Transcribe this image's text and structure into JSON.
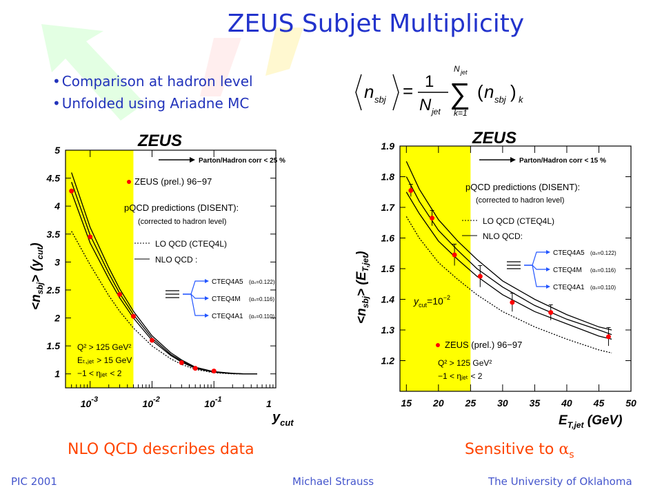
{
  "slide": {
    "title": "ZEUS Subjet Multiplicity",
    "bullets": [
      "Comparison at hadron level",
      "Unfolded using Ariadne MC"
    ],
    "formula": {
      "lhs": "n",
      "lhs_sub": "sbj",
      "num": "1",
      "den": "N",
      "den_sub": "jet",
      "sum_top": "N",
      "sum_top_sub": "jet",
      "sum_bottom": "k=1",
      "sum_symbol": "∑",
      "term": "n",
      "term_sub": "sbj",
      "term_k": "k",
      "eq": "="
    },
    "captions": {
      "left": "NLO QCD describes data",
      "right_prefix": "Sensitive to ",
      "right_symbol": "α",
      "right_sub": "s"
    },
    "footer": {
      "left": "PIC 2001",
      "center": "Michael Strauss",
      "right": "The University of Oklahoma"
    },
    "colors": {
      "title": "#2233cc",
      "caption": "#ff4400",
      "footer": "#4455cc",
      "band": "#ffff00",
      "data_point": "#ff0000",
      "arrow": "#2255ff"
    }
  },
  "chart_data": [
    {
      "type": "line",
      "title": "ZEUS",
      "xlabel": "y",
      "xlabel_sub": "cut",
      "ylabel": "<n",
      "ylabel_sub": "sbj",
      "ylabel_suffix": "> (y",
      "ylabel_suffix_sub": "cut",
      "ylabel_end": ")",
      "x_scale": "log",
      "xlim": [
        0.0004,
        1
      ],
      "ylim": [
        0.75,
        5
      ],
      "x_ticks": [
        {
          "v": 0.001,
          "base": "10",
          "exp": "-3"
        },
        {
          "v": 0.01,
          "base": "10",
          "exp": "-2"
        },
        {
          "v": 0.1,
          "base": "10",
          "exp": "-1"
        },
        {
          "v": 1,
          "base": "1",
          "exp": ""
        }
      ],
      "y_ticks": [
        {
          "v": 1,
          "label": "1"
        },
        {
          "v": 1.5,
          "label": "1.5"
        },
        {
          "v": 2,
          "label": "2"
        },
        {
          "v": 2.5,
          "label": "2.5"
        },
        {
          "v": 3,
          "label": "3"
        },
        {
          "v": 3.5,
          "label": "3.5"
        },
        {
          "v": 4,
          "label": "4"
        },
        {
          "v": 4.5,
          "label": "4.5"
        },
        {
          "v": 5,
          "label": "5"
        }
      ],
      "band_x": [
        0.0004,
        0.005
      ],
      "data": {
        "name": "ZEUS (prel.) 96−97",
        "x": [
          0.0005,
          0.001,
          0.003,
          0.005,
          0.01,
          0.03,
          0.05,
          0.1
        ],
        "y": [
          4.27,
          3.45,
          2.42,
          2.03,
          1.6,
          1.2,
          1.1,
          1.05
        ]
      },
      "series": [
        {
          "name": "CTEQ4A5",
          "style": "solid",
          "x": [
            0.0005,
            0.001,
            0.002,
            0.003,
            0.005,
            0.01,
            0.02,
            0.03,
            0.05,
            0.1,
            0.2,
            0.3,
            0.5
          ],
          "y": [
            4.6,
            3.62,
            2.9,
            2.52,
            2.12,
            1.68,
            1.38,
            1.25,
            1.12,
            1.04,
            1.01,
            1.0,
            1.0
          ]
        },
        {
          "name": "CTEQ4M",
          "style": "solid",
          "x": [
            0.0005,
            0.001,
            0.002,
            0.003,
            0.005,
            0.01,
            0.02,
            0.03,
            0.05,
            0.1,
            0.2,
            0.3,
            0.5
          ],
          "y": [
            4.43,
            3.48,
            2.8,
            2.44,
            2.06,
            1.64,
            1.35,
            1.23,
            1.11,
            1.035,
            1.01,
            1.0,
            1.0
          ]
        },
        {
          "name": "CTEQ4A1",
          "style": "solid",
          "x": [
            0.0005,
            0.001,
            0.002,
            0.003,
            0.005,
            0.01,
            0.02,
            0.03,
            0.05,
            0.1,
            0.2,
            0.3,
            0.5
          ],
          "y": [
            4.25,
            3.34,
            2.7,
            2.36,
            2.0,
            1.6,
            1.33,
            1.21,
            1.1,
            1.03,
            1.005,
            1.0,
            1.0
          ]
        },
        {
          "name": "LO QCD (CTEQ4L)",
          "style": "dotted",
          "x": [
            0.0005,
            0.001,
            0.002,
            0.003,
            0.005,
            0.01,
            0.02,
            0.03,
            0.05,
            0.1,
            0.2,
            0.3,
            0.5
          ],
          "y": [
            3.55,
            2.95,
            2.4,
            2.12,
            1.82,
            1.5,
            1.27,
            1.17,
            1.08,
            1.02,
            1.0,
            1.0,
            1.0
          ]
        }
      ],
      "annotations": {
        "parton_hadron": "Parton/Hadron corr < 25 %",
        "data_legend": "ZEUS (prel.) 96−97",
        "pqcd": "pQCD predictions (DISENT):",
        "corrected": "(corrected to hadron level)",
        "lo_legend": "LO QCD (CTEQ4L)",
        "nlo_legend": "NLO QCD :",
        "pdf_labels": [
          "CTEQ4A5",
          "CTEQ4M",
          "CTEQ4A1"
        ],
        "alpha_values": [
          "(αₛ=0.122)",
          "(αₛ=0.116)",
          "(αₛ=0.110)"
        ],
        "cuts": [
          "Q² > 125 GeV²",
          "Eₜ,ⱼₑₜ > 15 GeV",
          "−1 < ηⱼₑₜ < 2"
        ]
      }
    },
    {
      "type": "line",
      "title": "ZEUS",
      "xlabel": "E",
      "xlabel_sub": "T,jet",
      "xlabel_suffix": " (GeV)",
      "ylabel": "<n",
      "ylabel_sub": "sbj",
      "ylabel_suffix": "> (E",
      "ylabel_suffix_sub": "T,jet",
      "ylabel_end": ")",
      "x_scale": "linear",
      "xlim": [
        14,
        50
      ],
      "ylim": [
        1.1,
        1.9
      ],
      "x_ticks": [
        {
          "v": 15,
          "label": "15"
        },
        {
          "v": 20,
          "label": "20"
        },
        {
          "v": 25,
          "label": "25"
        },
        {
          "v": 30,
          "label": "30"
        },
        {
          "v": 35,
          "label": "35"
        },
        {
          "v": 40,
          "label": "40"
        },
        {
          "v": 45,
          "label": "45"
        },
        {
          "v": 50,
          "label": "50"
        }
      ],
      "y_ticks": [
        {
          "v": 1.2,
          "label": "1.2"
        },
        {
          "v": 1.3,
          "label": "1.3"
        },
        {
          "v": 1.4,
          "label": "1.4"
        },
        {
          "v": 1.5,
          "label": "1.5"
        },
        {
          "v": 1.6,
          "label": "1.6"
        },
        {
          "v": 1.7,
          "label": "1.7"
        },
        {
          "v": 1.8,
          "label": "1.8"
        },
        {
          "v": 1.9,
          "label": "1.9"
        }
      ],
      "band_x": [
        14,
        25
      ],
      "data": {
        "name": "ZEUS (prel.) 96−97",
        "x": [
          15.7,
          19,
          22.5,
          26.5,
          31.5,
          37.5,
          46.5
        ],
        "y": [
          1.755,
          1.665,
          1.545,
          1.475,
          1.39,
          1.357,
          1.278
        ],
        "yerr": [
          0.02,
          0.025,
          0.035,
          0.035,
          0.03,
          0.025,
          0.03
        ]
      },
      "series": [
        {
          "name": "CTEQ4A5",
          "style": "solid",
          "x": [
            15,
            17,
            20,
            23,
            26,
            30,
            35,
            40,
            45,
            47
          ],
          "y": [
            1.85,
            1.76,
            1.66,
            1.59,
            1.53,
            1.46,
            1.4,
            1.35,
            1.31,
            1.3
          ]
        },
        {
          "name": "CTEQ4M",
          "style": "solid",
          "x": [
            15,
            17,
            20,
            23,
            26,
            30,
            35,
            40,
            45,
            47
          ],
          "y": [
            1.8,
            1.72,
            1.625,
            1.56,
            1.5,
            1.44,
            1.38,
            1.335,
            1.3,
            1.285
          ]
        },
        {
          "name": "CTEQ4A1",
          "style": "solid",
          "x": [
            15,
            17,
            20,
            23,
            26,
            30,
            35,
            40,
            45,
            47
          ],
          "y": [
            1.75,
            1.68,
            1.59,
            1.53,
            1.475,
            1.415,
            1.36,
            1.32,
            1.28,
            1.27
          ]
        },
        {
          "name": "LO QCD (CTEQ4L)",
          "style": "dotted",
          "x": [
            15,
            17,
            20,
            23,
            26,
            30,
            35,
            40,
            45,
            47
          ],
          "y": [
            1.67,
            1.6,
            1.52,
            1.465,
            1.415,
            1.36,
            1.31,
            1.27,
            1.235,
            1.225
          ]
        }
      ],
      "annotations": {
        "parton_hadron": "Parton/Hadron corr < 15 %",
        "pqcd": "pQCD predictions (DISENT):",
        "corrected": "(corrected to hadron level)",
        "lo_legend": "LO QCD (CTEQ4L)",
        "nlo_legend": "NLO QCD:",
        "pdf_labels": [
          "CTEQ4A5",
          "CTEQ4M",
          "CTEQ4A1"
        ],
        "alpha_values": [
          "(αₛ=0.122)",
          "(αₛ=0.116)",
          "(αₛ=0.110)"
        ],
        "ycut": "y",
        "ycut_sub": "cut",
        "ycut_val": "=10",
        "ycut_exp": "−2",
        "data_legend": "ZEUS (prel.) 96−97",
        "cuts": [
          "Q² > 125 GeV²",
          "−1 < ηⱼₑₜ < 2"
        ]
      }
    }
  ]
}
